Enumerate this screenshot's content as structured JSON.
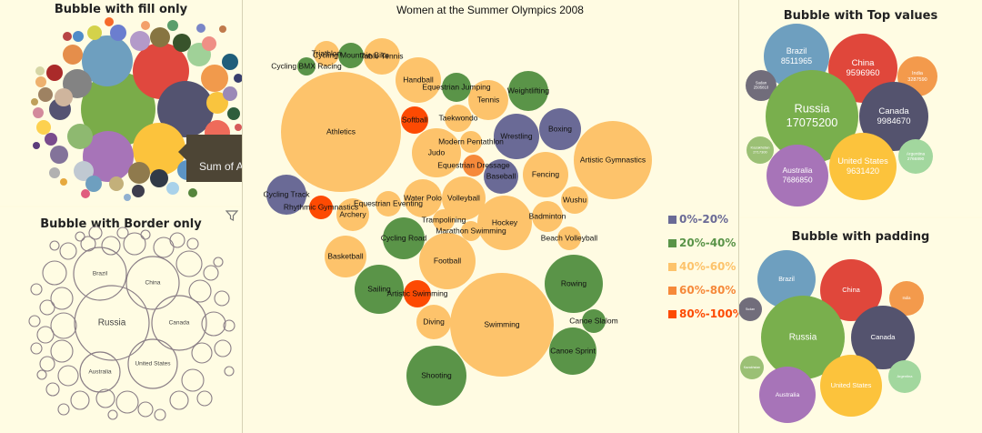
{
  "panels": {
    "fill_only": {
      "title": "Bubble with fill only",
      "tooltip": "Sum of A"
    },
    "border_only": {
      "title": "Bubble with Border only"
    },
    "main": {
      "title": "Women at the Summer Olympics 2008"
    },
    "top_values": {
      "title": "Bubble with Top values"
    },
    "padding": {
      "title": "Bubble with padding"
    }
  },
  "colors": {
    "band_0_20": "#6a6a96",
    "band_20_40": "#5a9448",
    "band_40_60": "#fdc36b",
    "band_60_80": "#f6893a",
    "band_80_100": "#fd4a03"
  },
  "legend": [
    {
      "label": "0%-20%",
      "color": "#6a6a96"
    },
    {
      "label": "20%-40%",
      "color": "#5a9448"
    },
    {
      "label": "40%-60%",
      "color": "#fdc36b"
    },
    {
      "label": "60%-80%",
      "color": "#f6893a"
    },
    {
      "label": "80%-100%",
      "color": "#fd4a03"
    }
  ],
  "sports": [
    {
      "name": "Athletics",
      "band": "band_40_60"
    },
    {
      "name": "Swimming",
      "band": "band_40_60"
    },
    {
      "name": "Artistic Gymnastics",
      "band": "band_40_60"
    },
    {
      "name": "Football",
      "band": "band_40_60"
    },
    {
      "name": "Shooting",
      "band": "band_20_40"
    },
    {
      "name": "Rowing",
      "band": "band_20_40"
    },
    {
      "name": "Hockey",
      "band": "band_40_60"
    },
    {
      "name": "Wrestling",
      "band": "band_0_20"
    },
    {
      "name": "Canoe Sprint",
      "band": "band_20_40"
    },
    {
      "name": "Sailing",
      "band": "band_20_40"
    },
    {
      "name": "Fencing",
      "band": "band_40_60"
    },
    {
      "name": "Judo",
      "band": "band_40_60"
    },
    {
      "name": "Handball",
      "band": "band_40_60"
    },
    {
      "name": "Boxing",
      "band": "band_0_20"
    },
    {
      "name": "Volleyball",
      "band": "band_40_60"
    },
    {
      "name": "Basketball",
      "band": "band_40_60"
    },
    {
      "name": "Cycling Road",
      "band": "band_20_40"
    },
    {
      "name": "Weightlifting",
      "band": "band_20_40"
    },
    {
      "name": "Tennis",
      "band": "band_40_60"
    },
    {
      "name": "Cycling Track",
      "band": "band_0_20"
    },
    {
      "name": "Water Polo",
      "band": "band_40_60"
    },
    {
      "name": "Baseball",
      "band": "band_0_20"
    },
    {
      "name": "Diving",
      "band": "band_40_60"
    },
    {
      "name": "Badminton",
      "band": "band_40_60"
    },
    {
      "name": "Archery",
      "band": "band_40_60"
    },
    {
      "name": "Table Tennis",
      "band": "band_40_60"
    },
    {
      "name": "Equestrian Jumping",
      "band": "band_20_40"
    },
    {
      "name": "Taekwondo",
      "band": "band_40_60"
    },
    {
      "name": "Modern Pentathlon",
      "band": "band_40_60"
    },
    {
      "name": "Wushu",
      "band": "band_40_60"
    },
    {
      "name": "Equestrian Eventing",
      "band": "band_40_60"
    },
    {
      "name": "Trampolining",
      "band": "band_40_60"
    },
    {
      "name": "Marathon Swimming",
      "band": "band_40_60"
    },
    {
      "name": "Beach Volleyball",
      "band": "band_40_60"
    },
    {
      "name": "Softball",
      "band": "band_80_100"
    },
    {
      "name": "Artistic Swimming",
      "band": "band_80_100"
    },
    {
      "name": "Rhythmic Gymnastics",
      "band": "band_80_100"
    },
    {
      "name": "Equestrian Dressage",
      "band": "band_60_80"
    },
    {
      "name": "Triathlon",
      "band": "band_40_60"
    },
    {
      "name": "Cycling Mountain Bike",
      "band": "band_20_40"
    },
    {
      "name": "Cycling BMX Racing",
      "band": "band_20_40"
    },
    {
      "name": "Canoe Slalom",
      "band": "band_20_40"
    }
  ],
  "border_bubbles": [
    "Brazil",
    "China",
    "Russia",
    "Canada",
    "Australia",
    "United States"
  ],
  "top_values": [
    {
      "country": "Brazil",
      "value": "8511965",
      "color": "#6e9fbf"
    },
    {
      "country": "China",
      "value": "9596960",
      "color": "#e0473b"
    },
    {
      "country": "India",
      "value": "3287590",
      "color": "#f39a4c"
    },
    {
      "country": "Sudan",
      "value": "2505810",
      "color": "#716d7b"
    },
    {
      "country": "Russia",
      "value": "17075200",
      "color": "#79af4d"
    },
    {
      "country": "Canada",
      "value": "9984670",
      "color": "#54536e"
    },
    {
      "country": "Kazakhstan",
      "value": "2717300",
      "color": "#9bc075"
    },
    {
      "country": "Argentina",
      "value": "2766890",
      "color": "#a2d79e"
    },
    {
      "country": "United States",
      "value": "9631420",
      "color": "#fcc33c"
    },
    {
      "country": "Australia",
      "value": "7686850",
      "color": "#a774b8"
    }
  ],
  "padding_bubbles": [
    "Brazil",
    "China",
    "India",
    "Sudan",
    "Russia",
    "Canada",
    "Kazakhstan",
    "Argentina",
    "United States",
    "Australia"
  ]
}
